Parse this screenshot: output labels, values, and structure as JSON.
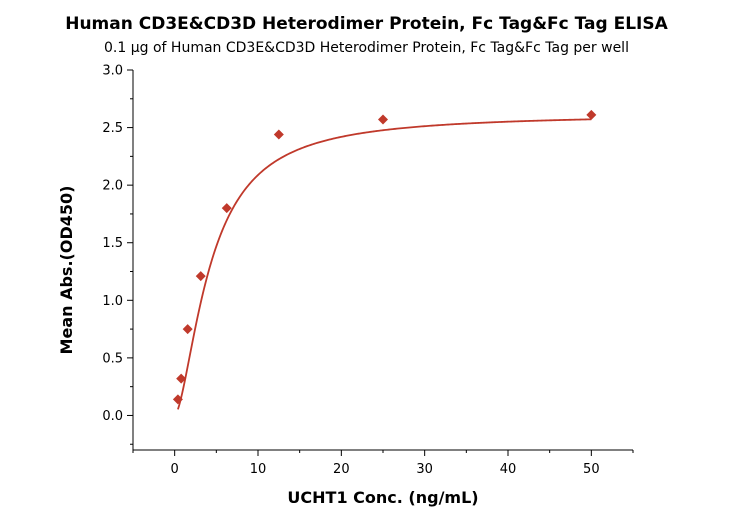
{
  "chart_data": {
    "type": "scatter",
    "title": "Human CD3E&CD3D Heterodimer Protein, Fc Tag&Fc Tag ELISA",
    "subtitle": "0.1 μg of Human CD3E&CD3D Heterodimer Protein, Fc Tag&Fc Tag per well",
    "xlabel": "UCHT1 Conc. (ng/mL)",
    "ylabel": "Mean Abs.(OD450)",
    "xlim": [
      -5,
      55
    ],
    "ylim": [
      -0.3,
      3.0
    ],
    "xticks": [
      0,
      10,
      20,
      30,
      40,
      50
    ],
    "yticks": [
      0.0,
      0.5,
      1.0,
      1.5,
      2.0,
      2.5,
      3.0
    ],
    "grid": false,
    "legend": "none",
    "series": [
      {
        "x": [
          0.39,
          0.78,
          1.56,
          3.13,
          6.25,
          12.5,
          25,
          50
        ],
        "y": [
          0.14,
          0.32,
          0.75,
          1.21,
          1.8,
          2.44,
          2.57,
          2.61
        ],
        "marker": "diamond",
        "color": "#c0392b",
        "fit": "4PL"
      }
    ]
  }
}
